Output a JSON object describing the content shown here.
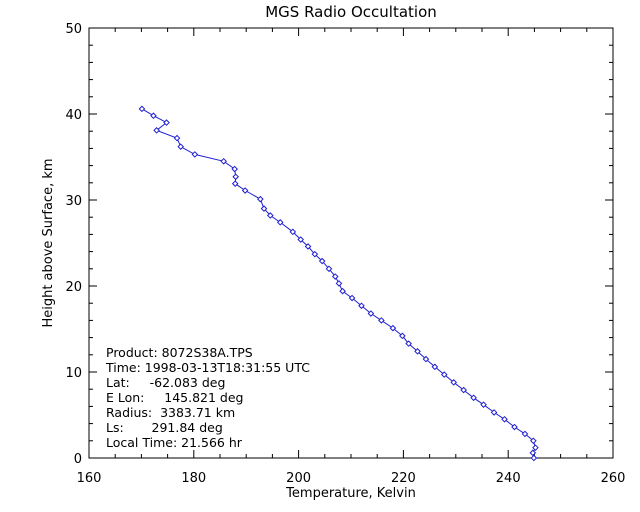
{
  "chart_data": {
    "type": "line",
    "title": "MGS Radio Occultation",
    "xlabel": "Temperature, Kelvin",
    "ylabel": "Height above Surface, km",
    "xlim": [
      160,
      260
    ],
    "ylim": [
      0,
      50
    ],
    "xticks": [
      160,
      180,
      200,
      220,
      240,
      260
    ],
    "yticks": [
      0,
      10,
      20,
      30,
      40,
      50
    ],
    "grid": false,
    "series": [
      {
        "color": "#1f1fd0",
        "marker": "diamond",
        "points": [
          [
            244.9,
            0.0
          ],
          [
            244.7,
            0.6
          ],
          [
            245.2,
            1.2
          ],
          [
            244.8,
            2.0
          ],
          [
            243.2,
            2.8
          ],
          [
            241.2,
            3.6
          ],
          [
            239.3,
            4.5
          ],
          [
            237.3,
            5.3
          ],
          [
            235.3,
            6.2
          ],
          [
            233.4,
            7.0
          ],
          [
            231.5,
            7.9
          ],
          [
            229.6,
            8.8
          ],
          [
            227.8,
            9.7
          ],
          [
            226.0,
            10.6
          ],
          [
            224.3,
            11.5
          ],
          [
            222.7,
            12.4
          ],
          [
            221.0,
            13.3
          ],
          [
            219.8,
            14.2
          ],
          [
            218.0,
            15.1
          ],
          [
            215.8,
            16.0
          ],
          [
            213.8,
            16.8
          ],
          [
            212.0,
            17.7
          ],
          [
            210.2,
            18.6
          ],
          [
            208.4,
            19.4
          ],
          [
            207.7,
            20.3
          ],
          [
            207.0,
            21.1
          ],
          [
            205.8,
            22.0
          ],
          [
            204.5,
            22.9
          ],
          [
            203.1,
            23.7
          ],
          [
            201.8,
            24.6
          ],
          [
            200.4,
            25.4
          ],
          [
            198.9,
            26.3
          ],
          [
            196.5,
            27.4
          ],
          [
            194.6,
            28.2
          ],
          [
            193.4,
            29.0
          ],
          [
            192.7,
            30.1
          ],
          [
            189.8,
            31.1
          ],
          [
            187.9,
            31.9
          ],
          [
            188.0,
            32.7
          ],
          [
            187.8,
            33.6
          ],
          [
            185.7,
            34.5
          ],
          [
            180.2,
            35.3
          ],
          [
            177.5,
            36.2
          ],
          [
            176.8,
            37.2
          ],
          [
            172.9,
            38.1
          ],
          [
            174.8,
            39.0
          ],
          [
            172.3,
            39.8
          ],
          [
            170.1,
            40.6
          ]
        ]
      }
    ],
    "annotations": [
      "Product: 8072S38A.TPS",
      "Time: 1998-03-13T18:31:55 UTC",
      "Lat:     -62.083 deg",
      "E Lon:     145.821 deg",
      "Radius:  3383.71 km",
      "Ls:       291.84 deg",
      "Local Time: 21.566 hr"
    ]
  }
}
